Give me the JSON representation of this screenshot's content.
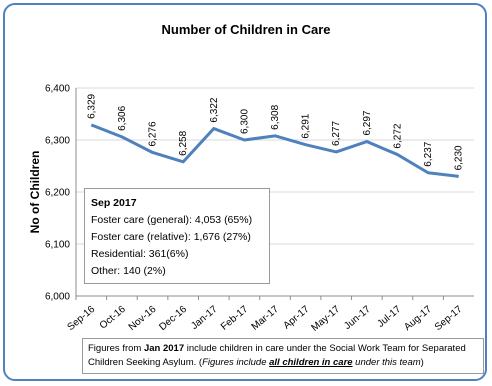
{
  "chart_data": {
    "type": "line",
    "title": "Number of Children in Care",
    "xlabel": "",
    "ylabel": "No of Children",
    "ylim": [
      6000,
      6400
    ],
    "yticks": [
      "6,000",
      "6,100",
      "6,200",
      "6,300",
      "6,400"
    ],
    "ytick_values": [
      6000,
      6100,
      6200,
      6300,
      6400
    ],
    "grid": true,
    "categories": [
      "Sep-16",
      "Oct-16",
      "Nov-16",
      "Dec-16",
      "Jan-17",
      "Feb-17",
      "Mar-17",
      "Apr-17",
      "May-17",
      "Jun-17",
      "Jul-17",
      "Aug-17",
      "Sep-17"
    ],
    "series": [
      {
        "values": [
          6329,
          6306,
          6276,
          6258,
          6322,
          6300,
          6308,
          6291,
          6277,
          6297,
          6272,
          6237,
          6230
        ],
        "labels": [
          "6,329",
          "6,306",
          "6,276",
          "6,258",
          "6,322",
          "6,300",
          "6,308",
          "6,291",
          "6,277",
          "6,297",
          "6,272",
          "6,237",
          "6,230"
        ],
        "color": "#4f81bd"
      }
    ]
  },
  "info_box": {
    "heading": "Sep 2017",
    "lines": [
      "Foster care (general): 4,053 (65%)",
      "Foster care (relative): 1,676 (27%)",
      "Residential: 361(6%)",
      "Other: 140 (2%)"
    ]
  },
  "footnote": {
    "part1": "Figures from ",
    "bold": "Jan 2017",
    "part2": " include children in care under the Social Work Team for Separated Children Seeking Asylum. (",
    "italic1": "Figures include ",
    "underlined": "all children in care",
    "italic2": " under this team",
    "part3": ")"
  },
  "colors": {
    "frame": "#4f81bd",
    "line": "#4f81bd",
    "grid": "#d9d9d9"
  }
}
